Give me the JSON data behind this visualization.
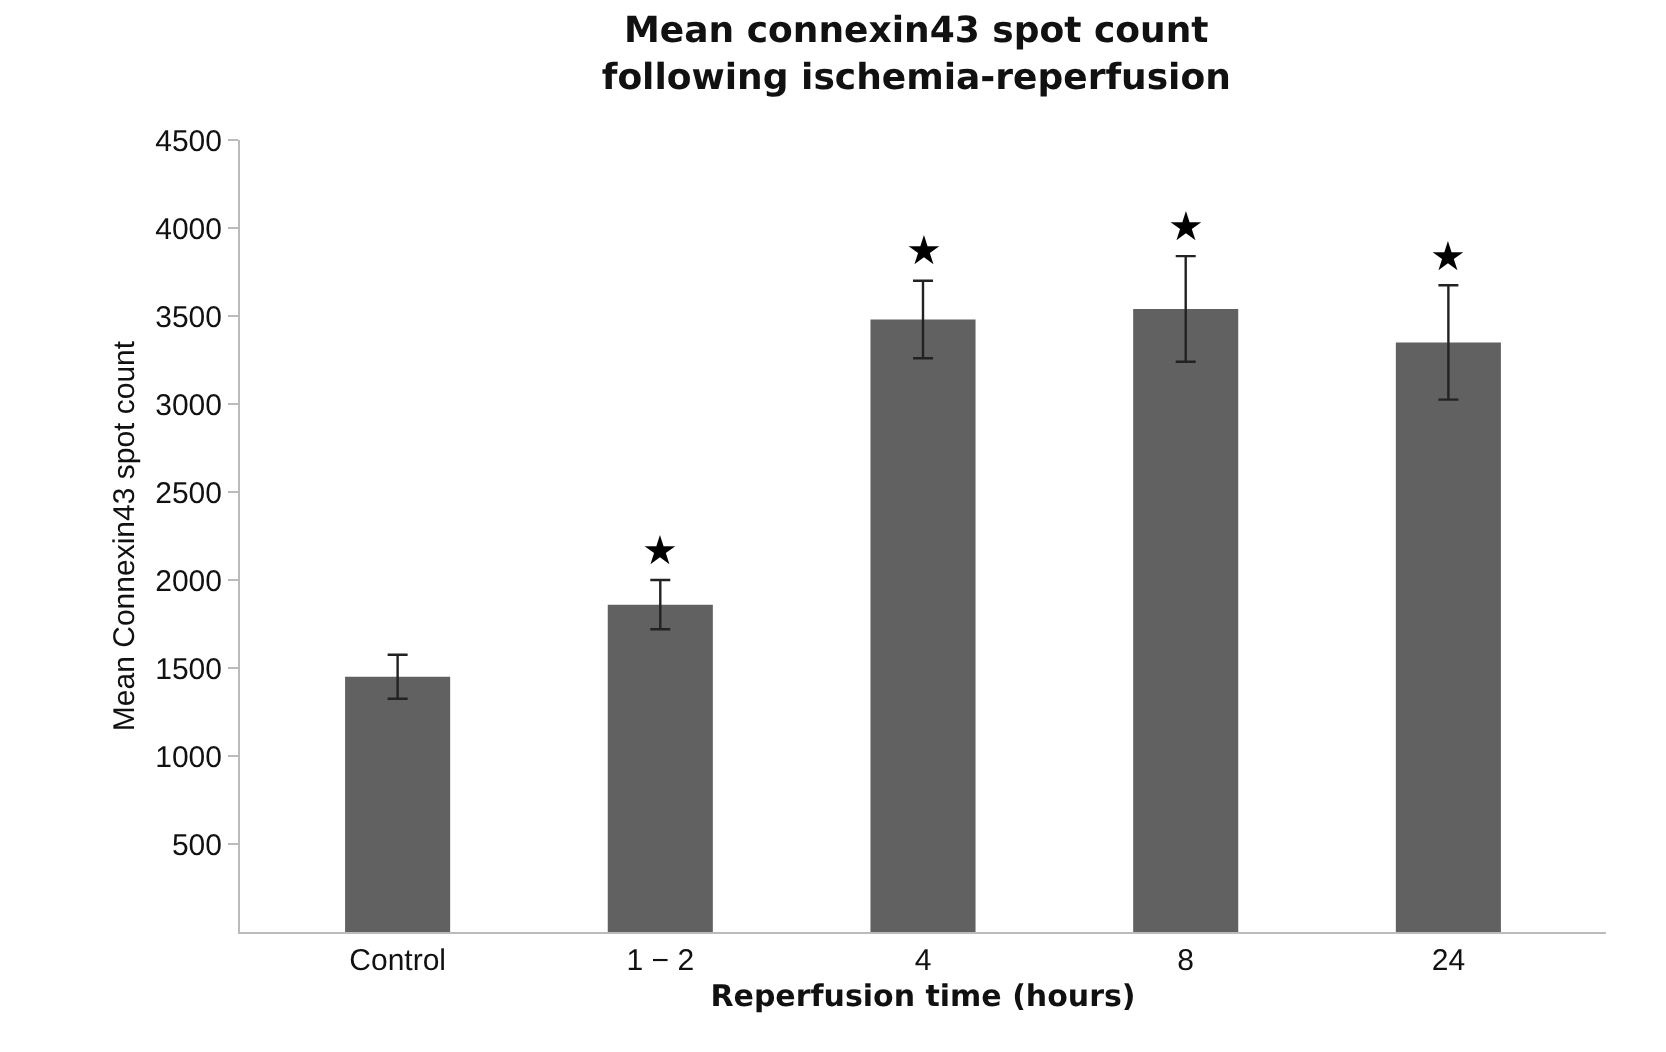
{
  "chart_data": {
    "type": "bar",
    "title": "Mean connexin43 spot count\nfollowing ischemia-reperfusion",
    "xlabel": "Reperfusion time (hours)",
    "ylabel": "Mean Connexin43 spot count",
    "categories": [
      "Control",
      "1 − 2",
      "4",
      "8",
      "24"
    ],
    "values": [
      1450,
      1860,
      3480,
      3540,
      3350
    ],
    "errors": [
      125,
      140,
      220,
      300,
      325
    ],
    "color": "#616161",
    "ylim": [
      0,
      4500
    ],
    "yticks": [
      500,
      1000,
      1500,
      2000,
      2500,
      3000,
      3500,
      4000,
      4500
    ],
    "grid": false,
    "annotations": [
      {
        "text": "★",
        "x": "1 − 2",
        "y": 1860
      },
      {
        "text": "★",
        "x": "4",
        "y": 3480
      },
      {
        "text": "★",
        "x": "8",
        "y": 3540
      },
      {
        "text": "★",
        "x": "24",
        "y": 3350
      }
    ]
  }
}
